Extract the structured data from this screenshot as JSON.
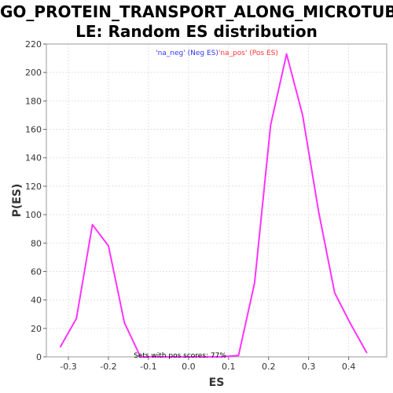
{
  "title_line1": "GO_PROTEIN_TRANSPORT_ALONG_MICROTUBU",
  "title_line2": "LE: Random ES distribution",
  "chart_data": {
    "type": "line",
    "xlabel": "ES",
    "ylabel": "P(ES)",
    "xlim": [
      -0.355,
      0.495
    ],
    "ylim": [
      0,
      220
    ],
    "xticks": [
      "-0.3",
      "-0.2",
      "-0.1",
      "0.0",
      "0.1",
      "0.2",
      "0.3",
      "0.4"
    ],
    "xtick_values": [
      -0.3,
      -0.2,
      -0.1,
      0.0,
      0.1,
      0.2,
      0.3,
      0.4
    ],
    "yticks": [
      "0",
      "20",
      "40",
      "60",
      "80",
      "100",
      "120",
      "140",
      "160",
      "180",
      "200",
      "220"
    ],
    "ytick_values": [
      0,
      20,
      40,
      60,
      80,
      100,
      120,
      140,
      160,
      180,
      200,
      220
    ],
    "grid": true,
    "legend": {
      "placement": "top-center",
      "entries": [
        {
          "label": "'na_neg' (Neg ES)",
          "color": "#3333ff"
        },
        {
          "label": "'na_pos' (Pos ES)",
          "color": "#ff3333"
        }
      ]
    },
    "annotation": "Sets with pos scores: 77%",
    "series": [
      {
        "color": "#ff33ff",
        "x": [
          -0.32,
          -0.28,
          -0.24,
          -0.2,
          -0.16,
          -0.12,
          -0.08,
          -0.04,
          0.0,
          0.04,
          0.08,
          0.125,
          0.165,
          0.205,
          0.245,
          0.285,
          0.325,
          0.365,
          0.405,
          0.445
        ],
        "y": [
          7,
          27,
          93,
          78,
          24,
          0,
          0,
          0,
          0,
          0,
          0,
          1,
          52,
          163,
          213,
          170,
          102,
          45,
          23,
          3
        ]
      }
    ]
  }
}
